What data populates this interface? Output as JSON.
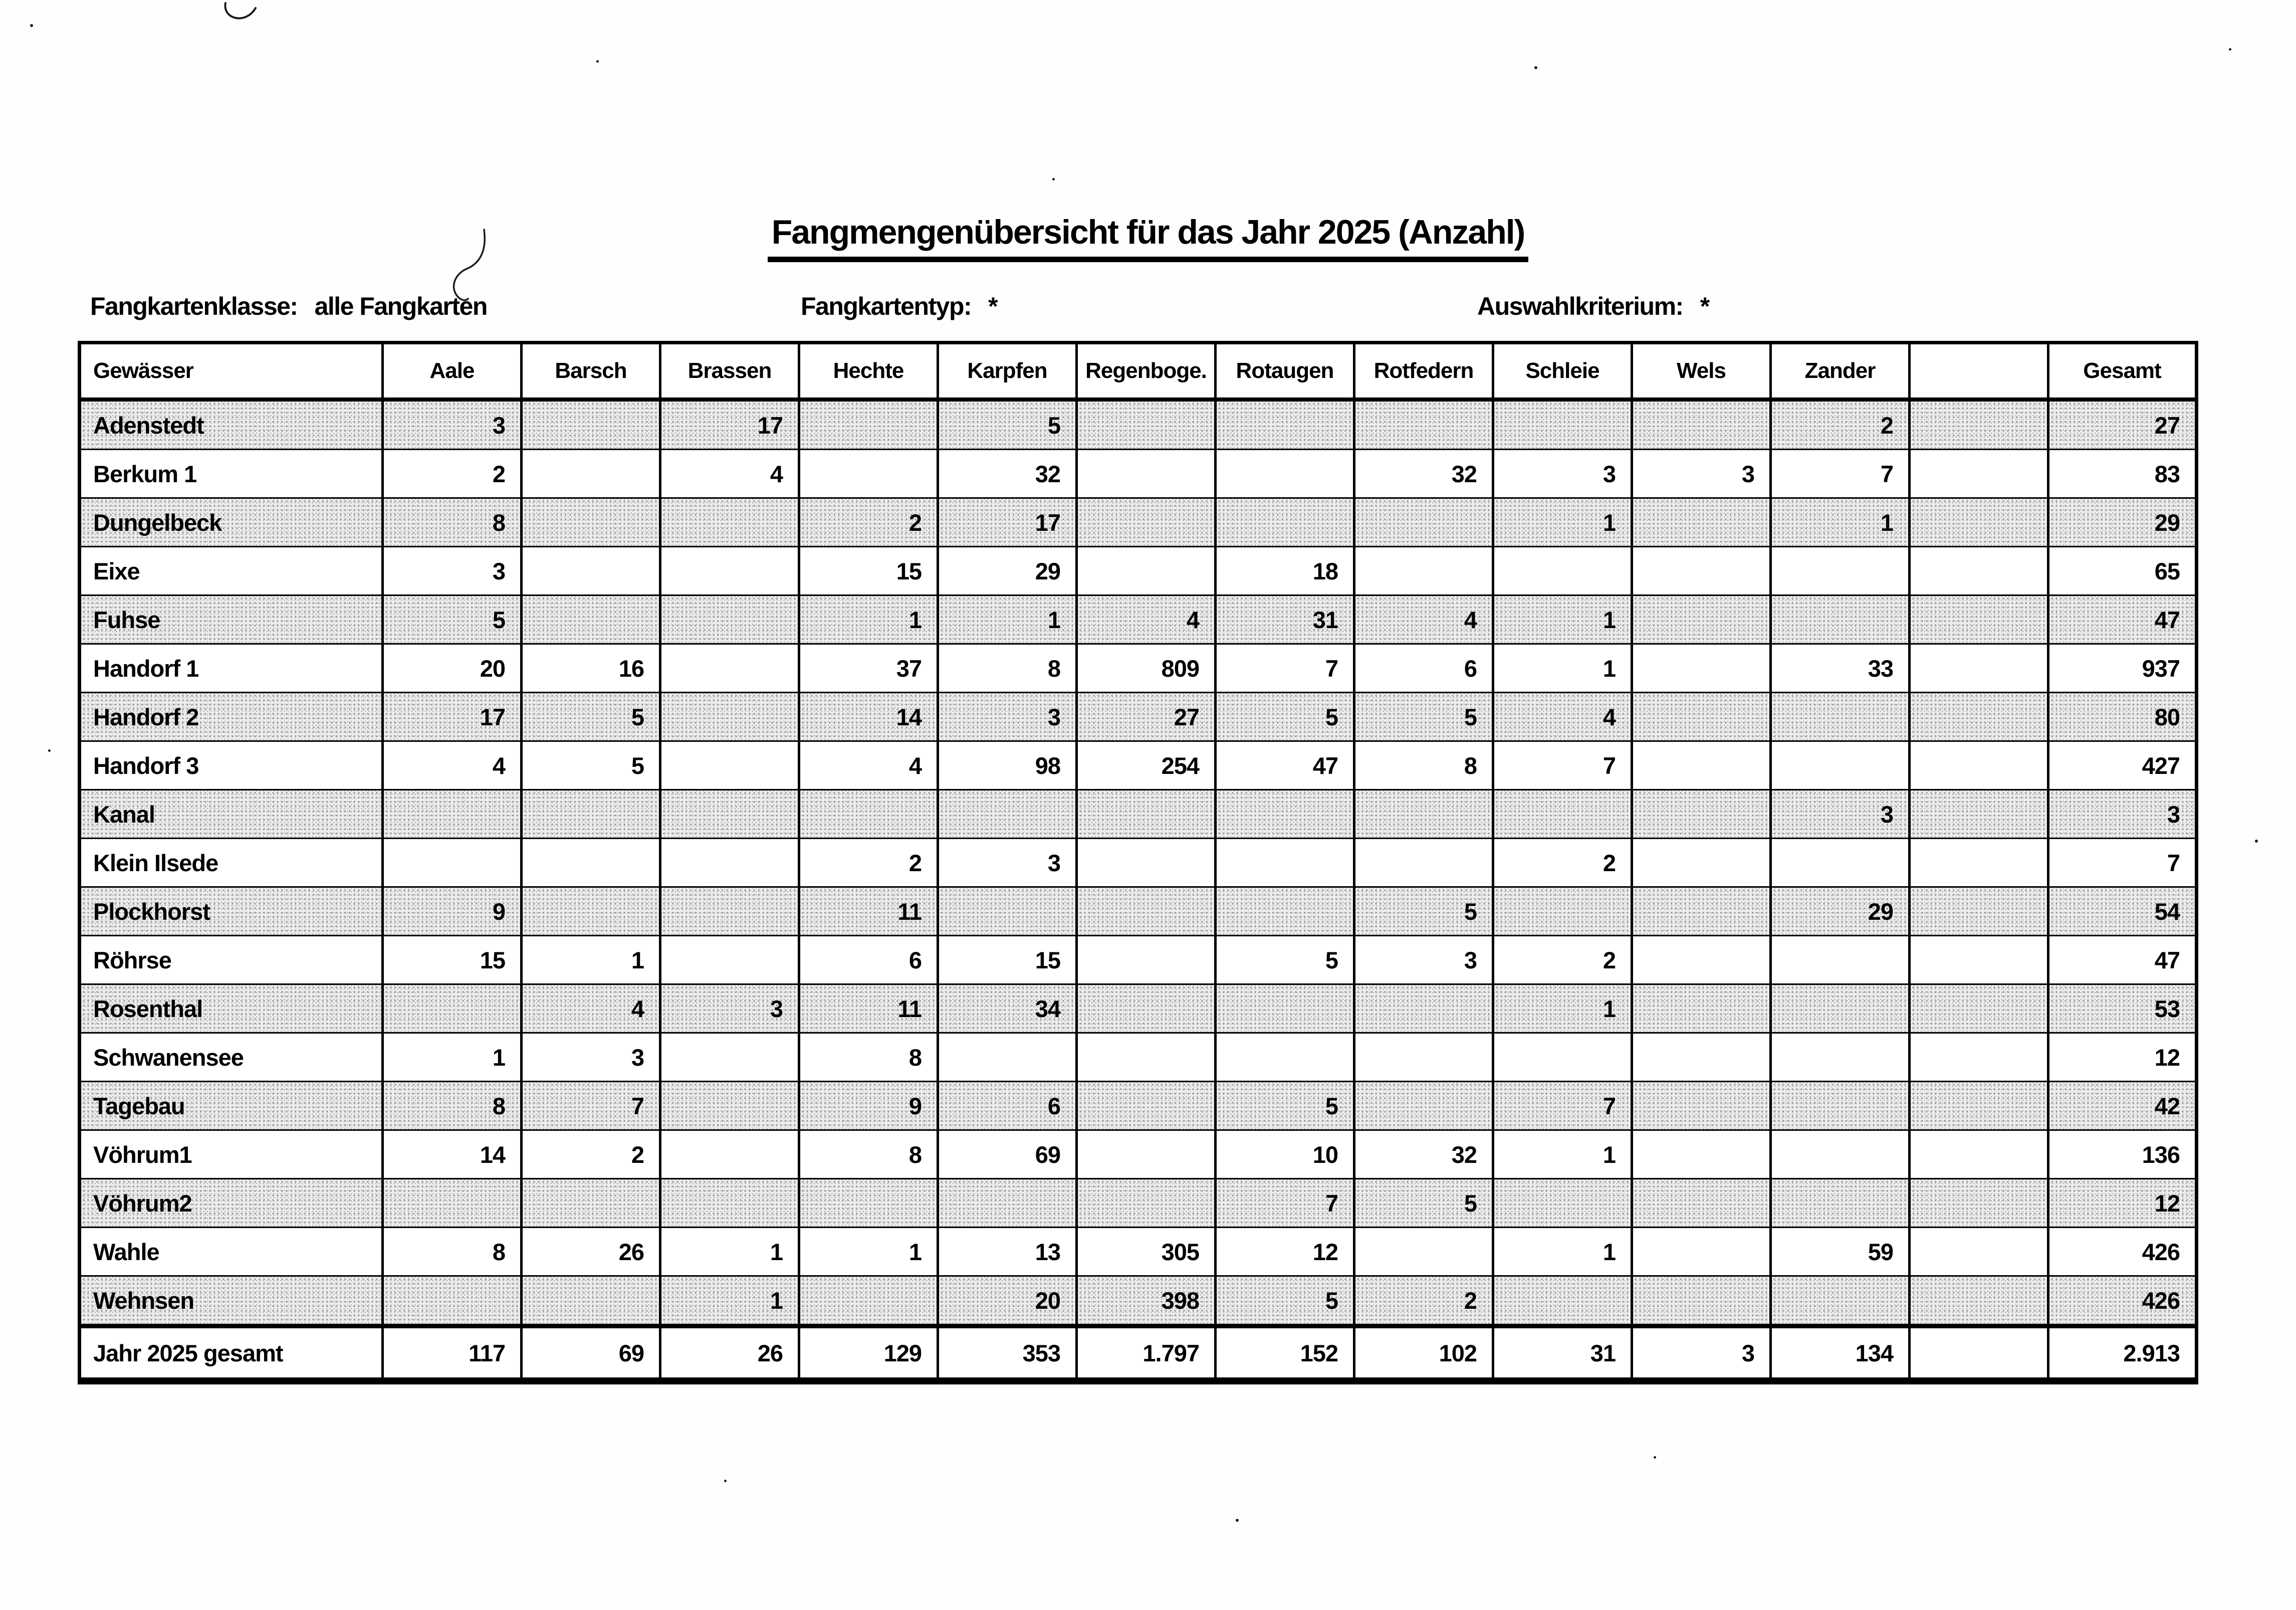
{
  "title": "Fangmengenübersicht für das Jahr 2025 (Anzahl)",
  "meta": {
    "fangkartenklasse_label": "Fangkartenklasse:",
    "fangkartenklasse_value": "alle Fangkarten",
    "fangkartentyp_label": "Fangkartentyp:",
    "fangkartentyp_value": "*",
    "auswahlkriterium_label": "Auswahlkriterium:",
    "auswahlkriterium_value": "*"
  },
  "table": {
    "columns": [
      "Gewässer",
      "Aale",
      "Barsch",
      "Brassen",
      "Hechte",
      "Karpfen",
      "Regenboge.",
      "Rotaugen",
      "Rotfedern",
      "Schleie",
      "Wels",
      "Zander",
      "",
      "Gesamt"
    ],
    "rows": [
      {
        "name": "Adenstedt",
        "values": [
          "3",
          "",
          "17",
          "",
          "5",
          "",
          "",
          "",
          "",
          "",
          "2",
          "",
          "27"
        ]
      },
      {
        "name": "Berkum 1",
        "values": [
          "2",
          "",
          "4",
          "",
          "32",
          "",
          "",
          "32",
          "3",
          "3",
          "7",
          "",
          "83"
        ]
      },
      {
        "name": "Dungelbeck",
        "values": [
          "8",
          "",
          "",
          "2",
          "17",
          "",
          "",
          "",
          "1",
          "",
          "1",
          "",
          "29"
        ]
      },
      {
        "name": "Eixe",
        "values": [
          "3",
          "",
          "",
          "15",
          "29",
          "",
          "18",
          "",
          "",
          "",
          "",
          "",
          "65"
        ]
      },
      {
        "name": "Fuhse",
        "values": [
          "5",
          "",
          "",
          "1",
          "1",
          "4",
          "31",
          "4",
          "1",
          "",
          "",
          "",
          "47"
        ]
      },
      {
        "name": "Handorf 1",
        "values": [
          "20",
          "16",
          "",
          "37",
          "8",
          "809",
          "7",
          "6",
          "1",
          "",
          "33",
          "",
          "937"
        ]
      },
      {
        "name": "Handorf 2",
        "values": [
          "17",
          "5",
          "",
          "14",
          "3",
          "27",
          "5",
          "5",
          "4",
          "",
          "",
          "",
          "80"
        ]
      },
      {
        "name": "Handorf 3",
        "values": [
          "4",
          "5",
          "",
          "4",
          "98",
          "254",
          "47",
          "8",
          "7",
          "",
          "",
          "",
          "427"
        ]
      },
      {
        "name": "Kanal",
        "values": [
          "",
          "",
          "",
          "",
          "",
          "",
          "",
          "",
          "",
          "",
          "3",
          "",
          "3"
        ]
      },
      {
        "name": "Klein Ilsede",
        "values": [
          "",
          "",
          "",
          "2",
          "3",
          "",
          "",
          "",
          "2",
          "",
          "",
          "",
          "7"
        ]
      },
      {
        "name": "Plockhorst",
        "values": [
          "9",
          "",
          "",
          "11",
          "",
          "",
          "",
          "5",
          "",
          "",
          "29",
          "",
          "54"
        ]
      },
      {
        "name": "Röhrse",
        "values": [
          "15",
          "1",
          "",
          "6",
          "15",
          "",
          "5",
          "3",
          "2",
          "",
          "",
          "",
          "47"
        ]
      },
      {
        "name": "Rosenthal",
        "values": [
          "",
          "4",
          "3",
          "11",
          "34",
          "",
          "",
          "",
          "1",
          "",
          "",
          "",
          "53"
        ]
      },
      {
        "name": "Schwanensee",
        "values": [
          "1",
          "3",
          "",
          "8",
          "",
          "",
          "",
          "",
          "",
          "",
          "",
          "",
          "12"
        ]
      },
      {
        "name": "Tagebau",
        "values": [
          "8",
          "7",
          "",
          "9",
          "6",
          "",
          "5",
          "",
          "7",
          "",
          "",
          "",
          "42"
        ]
      },
      {
        "name": "Vöhrum1",
        "values": [
          "14",
          "2",
          "",
          "8",
          "69",
          "",
          "10",
          "32",
          "1",
          "",
          "",
          "",
          "136"
        ]
      },
      {
        "name": "Vöhrum2",
        "values": [
          "",
          "",
          "",
          "",
          "",
          "",
          "7",
          "5",
          "",
          "",
          "",
          "",
          "12"
        ]
      },
      {
        "name": "Wahle",
        "values": [
          "8",
          "26",
          "1",
          "1",
          "13",
          "305",
          "12",
          "",
          "1",
          "",
          "59",
          "",
          "426"
        ]
      },
      {
        "name": "Wehnsen",
        "values": [
          "",
          "",
          "1",
          "",
          "20",
          "398",
          "5",
          "2",
          "",
          "",
          "",
          "",
          "426"
        ]
      }
    ],
    "total_row": {
      "name": "Jahr 2025 gesamt",
      "values": [
        "117",
        "69",
        "26",
        "129",
        "353",
        "1.797",
        "152",
        "102",
        "31",
        "3",
        "134",
        "",
        "2.913"
      ]
    }
  }
}
